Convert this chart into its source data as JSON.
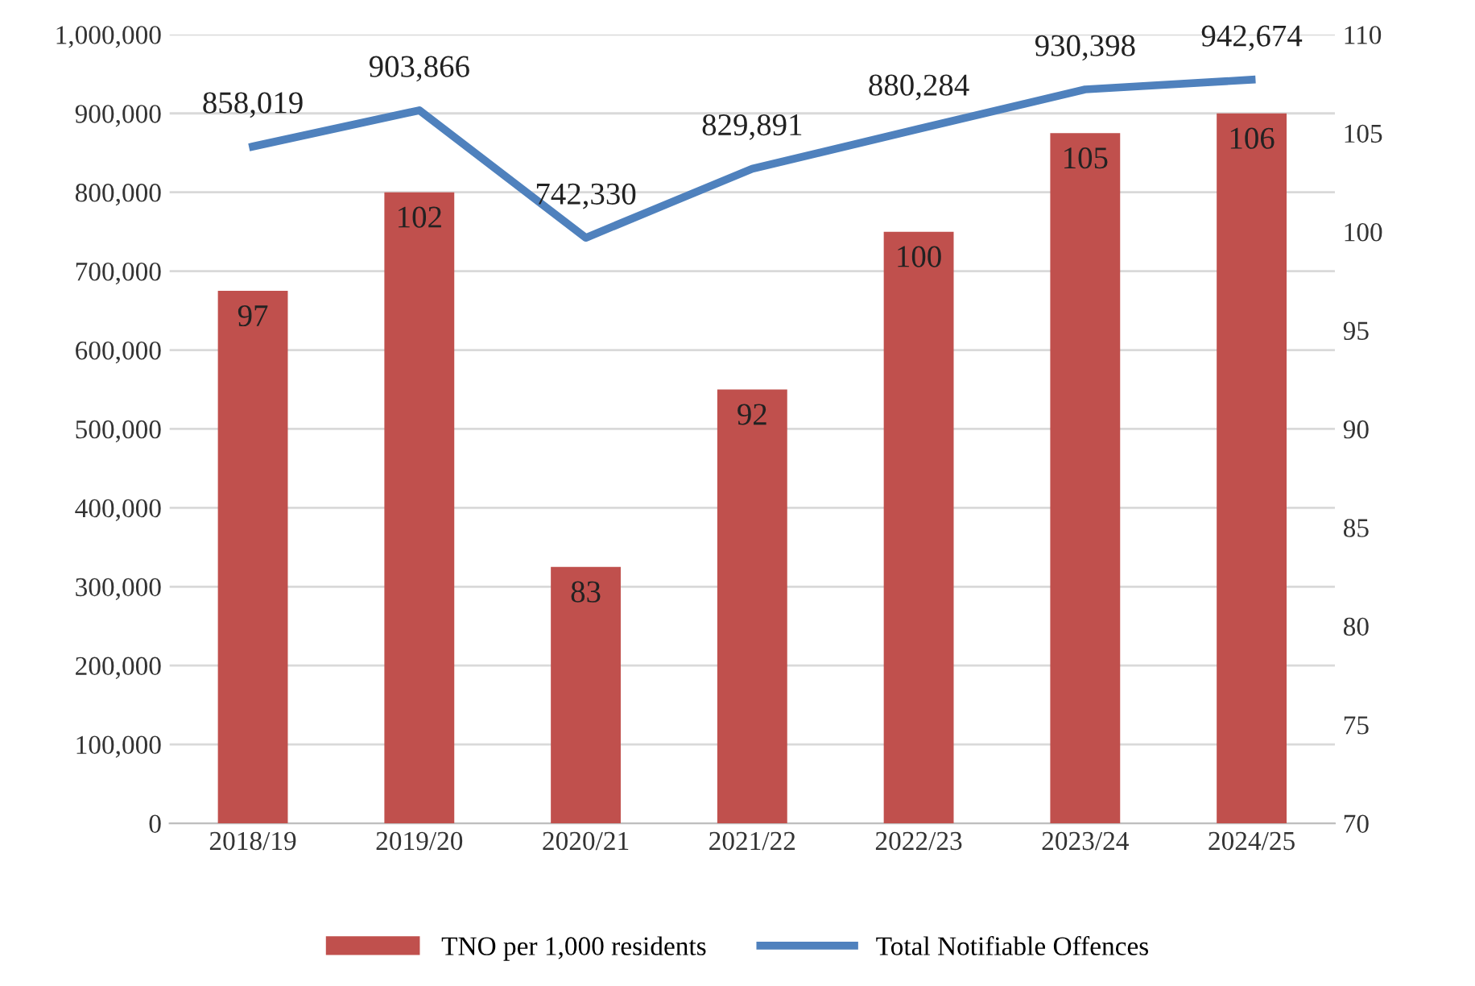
{
  "chart_data": {
    "type": "bar",
    "categories": [
      "2018/19",
      "2019/20",
      "2020/21",
      "2021/22",
      "2022/23",
      "2023/24",
      "2024/25"
    ],
    "series": [
      {
        "name": "TNO per 1,000 residents",
        "axis": "y2",
        "color": "#c0504d",
        "values": [
          97,
          102,
          83,
          92,
          100,
          105,
          106
        ]
      },
      {
        "name": "Total Notifiable Offences",
        "type": "line",
        "axis": "y",
        "color": "#4f81bd",
        "values": [
          858019,
          903866,
          742330,
          829891,
          880284,
          930398,
          942674
        ],
        "value_labels": [
          "858,019",
          "903,866",
          "742,330",
          "829,891",
          "880,284",
          "930,398",
          "942,674"
        ]
      }
    ],
    "data_labels": true,
    "ylim": [
      0,
      1000000
    ],
    "yticks": [
      0,
      {
        "value": 100000,
        "label": "100,000"
      },
      {
        "value": 200000,
        "label": "200,000"
      },
      {
        "value": 300000,
        "label": "300,000"
      },
      {
        "value": 400000,
        "label": "400,000"
      },
      {
        "value": 500000,
        "label": "500,000"
      },
      {
        "value": 600000,
        "label": "600,000"
      },
      {
        "value": 700000,
        "label": "700,000"
      },
      {
        "value": 800000,
        "label": "800,000"
      },
      {
        "value": 900000,
        "label": "900,000"
      },
      {
        "value": 1000000,
        "label": "1,000,000"
      }
    ],
    "y2lim": [
      70,
      110
    ],
    "y2ticks": [
      70,
      75,
      80,
      85,
      90,
      95,
      100,
      105,
      110
    ],
    "grid": "y",
    "legend": "bottom",
    "marker": "none",
    "line_style": "solid"
  }
}
